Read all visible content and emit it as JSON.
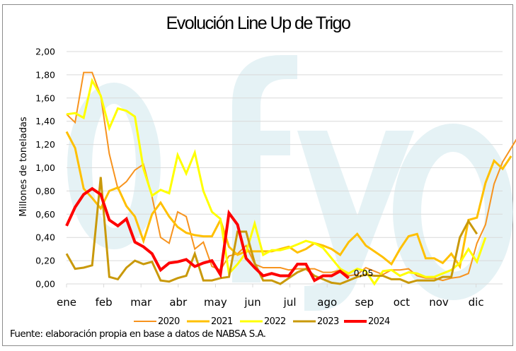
{
  "chart_data": {
    "type": "line",
    "title": "Evolución Line Up de Trigo",
    "xlabel": "",
    "ylabel": "Millones de toneladas",
    "ylim": [
      0,
      2
    ],
    "yticks": [
      "0,00",
      "0,20",
      "0,40",
      "0,60",
      "0,80",
      "1,00",
      "1,20",
      "1,40",
      "1,60",
      "1,80",
      "2,00"
    ],
    "months": [
      "ene",
      "feb",
      "mar",
      "abr",
      "may",
      "jun",
      "jul",
      "ago",
      "sep",
      "oct",
      "nov",
      "dic"
    ],
    "x_unit": "semana",
    "grid": true,
    "legend_position": "bottom",
    "watermark": "ofyo",
    "annotation": {
      "text": "0,05",
      "series": "2024"
    },
    "source": "Fuente: elaboración propia en base a datos de NABSA S.A.",
    "series": [
      {
        "name": "2020",
        "color": "#f7931e",
        "width": 2,
        "values": [
          1.46,
          1.39,
          1.82,
          1.82,
          1.62,
          1.12,
          0.82,
          0.88,
          0.98,
          1.03,
          0.75,
          0.4,
          0.35,
          0.62,
          0.58,
          0.3,
          0.36,
          0.15,
          0.12,
          0.24,
          0.26,
          0.33,
          0.17,
          0.14,
          0.14,
          0.14,
          0.12,
          0.13,
          0.13,
          0.13,
          0.1,
          0.1,
          0.12,
          0.07,
          0.08,
          0.14,
          0.11,
          0.08,
          0.12,
          0.12,
          0.13,
          0.07,
          0.05,
          0.05,
          0.03,
          0.05,
          0.06,
          0.09,
          0.35,
          0.51,
          0.86,
          1.05,
          1.17,
          1.29
        ]
      },
      {
        "name": "2021",
        "color": "#ffc000",
        "width": 3,
        "values": [
          1.31,
          1.17,
          0.82,
          0.74,
          0.65,
          0.8,
          0.83,
          0.67,
          0.58,
          0.37,
          0.6,
          0.7,
          0.58,
          0.49,
          0.44,
          0.42,
          0.41,
          0.41,
          0.55,
          0.32,
          0.25,
          0.28,
          0.28,
          0.28,
          0.28,
          0.3,
          0.32,
          0.27,
          0.3,
          0.35,
          0.33,
          0.3,
          0.25,
          0.36,
          0.43,
          0.33,
          0.28,
          0.23,
          0.17,
          0.3,
          0.41,
          0.43,
          0.22,
          0.22,
          0.18,
          0.26,
          0.15,
          0.55,
          0.57,
          0.87,
          1.06,
          0.99,
          1.1
        ]
      },
      {
        "name": "2022",
        "color": "#ffff00",
        "width": 3,
        "values": [
          1.46,
          1.47,
          1.43,
          1.75,
          1.62,
          1.34,
          1.51,
          1.49,
          1.44,
          0.99,
          0.76,
          0.81,
          0.78,
          1.11,
          0.95,
          1.13,
          0.8,
          0.62,
          0.56,
          0.09,
          0.17,
          0.27,
          0.52,
          0.25,
          0.29,
          0.29,
          0.31,
          0.34,
          0.37,
          0.35,
          0.31,
          0.22,
          0.13,
          0.09,
          0.13,
          0.11,
          0.0,
          0.11,
          0.12,
          0.07,
          0.1,
          0.09,
          0.06,
          0.06,
          0.09,
          0.12,
          0.18,
          0.3,
          0.19,
          0.4
        ]
      },
      {
        "name": "2023",
        "color": "#c9990a",
        "width": 3,
        "values": [
          0.26,
          0.13,
          0.14,
          0.16,
          0.92,
          0.06,
          0.04,
          0.14,
          0.2,
          0.17,
          0.19,
          0.03,
          0.02,
          0.05,
          0.07,
          0.26,
          0.03,
          0.03,
          0.05,
          0.06,
          0.45,
          0.45,
          0.18,
          0.03,
          0.03,
          0.0,
          0.05,
          0.1,
          0.13,
          0.07,
          0.04,
          0.01,
          0.0,
          0.03,
          0.06,
          0.08,
          0.07,
          0.07,
          0.04,
          0.04,
          0.01,
          0.03,
          0.03,
          0.03,
          0.06,
          0.06,
          0.4,
          0.54,
          0.43
        ]
      },
      {
        "name": "2024",
        "color": "#ff0000",
        "width": 4,
        "values": [
          0.5,
          0.66,
          0.77,
          0.82,
          0.77,
          0.55,
          0.5,
          0.56,
          0.36,
          0.32,
          0.26,
          0.12,
          0.18,
          0.19,
          0.21,
          0.15,
          0.18,
          0.2,
          0.08,
          0.61,
          0.51,
          0.22,
          0.14,
          0.07,
          0.09,
          0.07,
          0.07,
          0.17,
          0.17,
          0.03,
          0.07,
          0.07,
          0.11,
          0.05
        ]
      }
    ]
  }
}
